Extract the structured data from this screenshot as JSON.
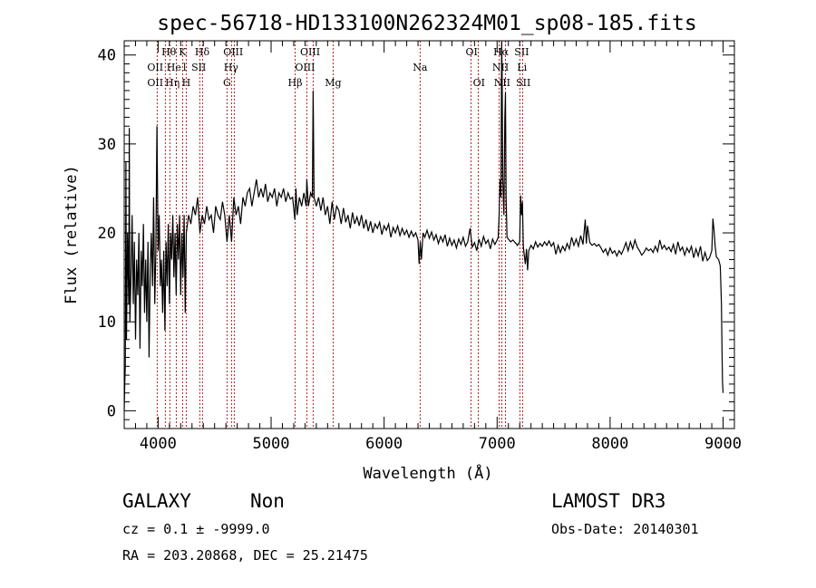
{
  "chart_data": {
    "type": "line",
    "title": "spec-56718-HD133100N262324M01_sp08-185.fits",
    "xlabel": "Wavelength (Å)",
    "ylabel": "Flux (relative)",
    "xlim": [
      3700,
      9100
    ],
    "ylim": [
      -2,
      41.6
    ],
    "xticks": [
      4000,
      5000,
      6000,
      7000,
      8000,
      9000
    ],
    "yticks": [
      0,
      10,
      20,
      30,
      40
    ],
    "grid": false,
    "line_color": "#000000",
    "marker_color": "#b22222",
    "spectrum": [
      [
        3700,
        0
      ],
      [
        3705,
        3
      ],
      [
        3710,
        5
      ],
      [
        3715,
        28
      ],
      [
        3720,
        8
      ],
      [
        3730,
        20
      ],
      [
        3740,
        12
      ],
      [
        3745,
        31.8
      ],
      [
        3750,
        10
      ],
      [
        3760,
        15
      ],
      [
        3770,
        22
      ],
      [
        3780,
        12
      ],
      [
        3790,
        19
      ],
      [
        3800,
        8
      ],
      [
        3810,
        17
      ],
      [
        3820,
        13
      ],
      [
        3830,
        20
      ],
      [
        3840,
        7
      ],
      [
        3850,
        18
      ],
      [
        3860,
        14
      ],
      [
        3870,
        21
      ],
      [
        3880,
        11
      ],
      [
        3890,
        17
      ],
      [
        3900,
        10
      ],
      [
        3910,
        19
      ],
      [
        3920,
        6
      ],
      [
        3930,
        16
      ],
      [
        3940,
        20
      ],
      [
        3950,
        14
      ],
      [
        3960,
        24
      ],
      [
        3970,
        12
      ],
      [
        3980,
        18
      ],
      [
        3990,
        32
      ],
      [
        4000,
        18
      ],
      [
        4010,
        22
      ],
      [
        4020,
        14
      ],
      [
        4030,
        17
      ],
      [
        4040,
        11
      ],
      [
        4050,
        18
      ],
      [
        4060,
        9
      ],
      [
        4070,
        19
      ],
      [
        4080,
        14
      ],
      [
        4090,
        21
      ],
      [
        4100,
        12
      ],
      [
        4110,
        20
      ],
      [
        4120,
        17
      ],
      [
        4130,
        22
      ],
      [
        4140,
        15
      ],
      [
        4150,
        20
      ],
      [
        4160,
        13
      ],
      [
        4170,
        21
      ],
      [
        4180,
        17
      ],
      [
        4190,
        22
      ],
      [
        4200,
        13
      ],
      [
        4210,
        20
      ],
      [
        4220,
        15
      ],
      [
        4230,
        22
      ],
      [
        4240,
        11
      ],
      [
        4250,
        20
      ],
      [
        4270,
        22
      ],
      [
        4290,
        21
      ],
      [
        4310,
        23
      ],
      [
        4330,
        22
      ],
      [
        4350,
        24
      ],
      [
        4370,
        20
      ],
      [
        4390,
        22
      ],
      [
        4410,
        21
      ],
      [
        4430,
        23
      ],
      [
        4450,
        21.5
      ],
      [
        4470,
        22
      ],
      [
        4490,
        20
      ],
      [
        4510,
        23
      ],
      [
        4530,
        22
      ],
      [
        4550,
        21.5
      ],
      [
        4570,
        23.5
      ],
      [
        4590,
        22
      ],
      [
        4610,
        19
      ],
      [
        4630,
        22
      ],
      [
        4650,
        19
      ],
      [
        4670,
        24
      ],
      [
        4690,
        22
      ],
      [
        4710,
        23
      ],
      [
        4730,
        21
      ],
      [
        4750,
        24
      ],
      [
        4770,
        23
      ],
      [
        4790,
        24.5
      ],
      [
        4810,
        25
      ],
      [
        4830,
        23
      ],
      [
        4850,
        24.5
      ],
      [
        4870,
        26
      ],
      [
        4890,
        24
      ],
      [
        4910,
        25
      ],
      [
        4930,
        24
      ],
      [
        4950,
        25.5
      ],
      [
        4970,
        23.5
      ],
      [
        4990,
        24.5
      ],
      [
        5010,
        24
      ],
      [
        5030,
        25
      ],
      [
        5050,
        23
      ],
      [
        5070,
        24.5
      ],
      [
        5090,
        24
      ],
      [
        5110,
        25
      ],
      [
        5130,
        23.5
      ],
      [
        5150,
        24.5
      ],
      [
        5170,
        23.8
      ],
      [
        5190,
        24
      ],
      [
        5210,
        21.5
      ],
      [
        5220,
        25
      ],
      [
        5230,
        22
      ],
      [
        5250,
        24
      ],
      [
        5270,
        23
      ],
      [
        5290,
        24.5
      ],
      [
        5310,
        23
      ],
      [
        5316,
        26
      ],
      [
        5330,
        23
      ],
      [
        5350,
        24.5
      ],
      [
        5365,
        24
      ],
      [
        5372,
        36
      ],
      [
        5380,
        24
      ],
      [
        5400,
        23
      ],
      [
        5420,
        24
      ],
      [
        5440,
        22.5
      ],
      [
        5460,
        24
      ],
      [
        5480,
        22
      ],
      [
        5500,
        23
      ],
      [
        5520,
        21
      ],
      [
        5540,
        23.5
      ],
      [
        5560,
        21.5
      ],
      [
        5580,
        23
      ],
      [
        5600,
        22.5
      ],
      [
        5620,
        21
      ],
      [
        5640,
        22.8
      ],
      [
        5660,
        21.2
      ],
      [
        5680,
        22
      ],
      [
        5700,
        20.5
      ],
      [
        5720,
        22.3
      ],
      [
        5740,
        21
      ],
      [
        5760,
        21.8
      ],
      [
        5780,
        20.8
      ],
      [
        5800,
        22
      ],
      [
        5820,
        20.5
      ],
      [
        5840,
        21.5
      ],
      [
        5860,
        20.2
      ],
      [
        5880,
        21.3
      ],
      [
        5900,
        20
      ],
      [
        5920,
        21
      ],
      [
        5940,
        20.5
      ],
      [
        5960,
        21.2
      ],
      [
        5980,
        19.8
      ],
      [
        6000,
        20.8
      ],
      [
        6020,
        20.3
      ],
      [
        6040,
        21
      ],
      [
        6060,
        19.5
      ],
      [
        6080,
        20.6
      ],
      [
        6100,
        20
      ],
      [
        6120,
        20.8
      ],
      [
        6140,
        19.7
      ],
      [
        6160,
        20.5
      ],
      [
        6180,
        19.8
      ],
      [
        6200,
        20.3
      ],
      [
        6220,
        19.5
      ],
      [
        6240,
        20.2
      ],
      [
        6260,
        19.6
      ],
      [
        6280,
        20
      ],
      [
        6300,
        19.2
      ],
      [
        6310,
        16.5
      ],
      [
        6320,
        19
      ],
      [
        6330,
        17
      ],
      [
        6345,
        20
      ],
      [
        6360,
        19.5
      ],
      [
        6380,
        20.3
      ],
      [
        6400,
        19.4
      ],
      [
        6420,
        20.1
      ],
      [
        6440,
        19.2
      ],
      [
        6460,
        19.8
      ],
      [
        6480,
        18.8
      ],
      [
        6500,
        19.6
      ],
      [
        6520,
        19
      ],
      [
        6540,
        19.8
      ],
      [
        6560,
        18.5
      ],
      [
        6580,
        19.4
      ],
      [
        6600,
        18.6
      ],
      [
        6620,
        19.2
      ],
      [
        6640,
        18.3
      ],
      [
        6660,
        19.3
      ],
      [
        6680,
        18.7
      ],
      [
        6700,
        19.5
      ],
      [
        6720,
        18.5
      ],
      [
        6740,
        19
      ],
      [
        6760,
        20.5
      ],
      [
        6780,
        18.4
      ],
      [
        6800,
        18.9
      ],
      [
        6820,
        18
      ],
      [
        6840,
        19.3
      ],
      [
        6860,
        18.5
      ],
      [
        6880,
        19.6
      ],
      [
        6900,
        18.8
      ],
      [
        6920,
        19.2
      ],
      [
        6940,
        18.2
      ],
      [
        6960,
        19.3
      ],
      [
        6980,
        18.7
      ],
      [
        7000,
        19.2
      ],
      [
        7010,
        19.5
      ],
      [
        7018,
        22
      ],
      [
        7026,
        26
      ],
      [
        7034,
        24
      ],
      [
        7040,
        41.5
      ],
      [
        7044,
        38
      ],
      [
        7050,
        26
      ],
      [
        7060,
        22
      ],
      [
        7068,
        33
      ],
      [
        7074,
        35.8
      ],
      [
        7080,
        24
      ],
      [
        7088,
        19.5
      ],
      [
        7100,
        19.3
      ],
      [
        7120,
        19
      ],
      [
        7140,
        19.2
      ],
      [
        7160,
        18.9
      ],
      [
        7180,
        18.6
      ],
      [
        7200,
        19
      ],
      [
        7208,
        24.2
      ],
      [
        7216,
        22
      ],
      [
        7224,
        23.5
      ],
      [
        7232,
        18.5
      ],
      [
        7240,
        17.5
      ],
      [
        7250,
        16.5
      ],
      [
        7260,
        18.2
      ],
      [
        7270,
        15.8
      ],
      [
        7280,
        18
      ],
      [
        7300,
        18.6
      ],
      [
        7320,
        18.2
      ],
      [
        7340,
        19
      ],
      [
        7360,
        18.4
      ],
      [
        7380,
        18.8
      ],
      [
        7400,
        18.5
      ],
      [
        7420,
        19
      ],
      [
        7440,
        18.6
      ],
      [
        7460,
        19.1
      ],
      [
        7480,
        18.5
      ],
      [
        7500,
        18.9
      ],
      [
        7520,
        17.6
      ],
      [
        7540,
        18.6
      ],
      [
        7560,
        17.8
      ],
      [
        7580,
        18.5
      ],
      [
        7600,
        18
      ],
      [
        7620,
        18.8
      ],
      [
        7640,
        18.2
      ],
      [
        7660,
        19.5
      ],
      [
        7680,
        18.6
      ],
      [
        7700,
        19.3
      ],
      [
        7720,
        18.5
      ],
      [
        7740,
        19.7
      ],
      [
        7760,
        18.7
      ],
      [
        7780,
        21.5
      ],
      [
        7790,
        18.8
      ],
      [
        7800,
        20.8
      ],
      [
        7820,
        18.9
      ],
      [
        7840,
        18.6
      ],
      [
        7860,
        18.8
      ],
      [
        7880,
        18.5
      ],
      [
        7900,
        18.7
      ],
      [
        7920,
        18.3
      ],
      [
        7940,
        17.8
      ],
      [
        7960,
        18.2
      ],
      [
        7980,
        17.5
      ],
      [
        8000,
        18.3
      ],
      [
        8020,
        17.7
      ],
      [
        8040,
        18
      ],
      [
        8060,
        17.4
      ],
      [
        8080,
        18
      ],
      [
        8100,
        17.6
      ],
      [
        8120,
        18.2
      ],
      [
        8140,
        18.9
      ],
      [
        8160,
        18
      ],
      [
        8180,
        19
      ],
      [
        8200,
        18.2
      ],
      [
        8220,
        19.2
      ],
      [
        8240,
        18.4
      ],
      [
        8260,
        18
      ],
      [
        8280,
        17.5
      ],
      [
        8300,
        17.8
      ],
      [
        8320,
        18.3
      ],
      [
        8340,
        18
      ],
      [
        8360,
        18.2
      ],
      [
        8380,
        17.8
      ],
      [
        8400,
        18.5
      ],
      [
        8420,
        17.9
      ],
      [
        8440,
        19.2
      ],
      [
        8460,
        18.2
      ],
      [
        8480,
        18.6
      ],
      [
        8500,
        18.1
      ],
      [
        8520,
        18.4
      ],
      [
        8540,
        17.9
      ],
      [
        8560,
        18.7
      ],
      [
        8580,
        17.6
      ],
      [
        8600,
        19
      ],
      [
        8620,
        18
      ],
      [
        8640,
        18.4
      ],
      [
        8660,
        17.5
      ],
      [
        8680,
        18.3
      ],
      [
        8700,
        17.8
      ],
      [
        8720,
        18.5
      ],
      [
        8740,
        17.2
      ],
      [
        8760,
        18.2
      ],
      [
        8780,
        17.4
      ],
      [
        8800,
        18.5
      ],
      [
        8820,
        16.8
      ],
      [
        8840,
        17.8
      ],
      [
        8860,
        16.9
      ],
      [
        8880,
        17.2
      ],
      [
        8900,
        18
      ],
      [
        8910,
        21.6
      ],
      [
        8920,
        20.2
      ],
      [
        8930,
        18.5
      ],
      [
        8940,
        17.3
      ],
      [
        8960,
        17
      ],
      [
        8975,
        16.3
      ],
      [
        8985,
        12
      ],
      [
        8990,
        7
      ],
      [
        8995,
        3.2
      ],
      [
        9000,
        2
      ]
    ],
    "line_markers": [
      3992,
      4064,
      4104,
      4161,
      4217,
      4249,
      4369,
      4393,
      4610,
      4650,
      4674,
      5212,
      5316,
      5372,
      5549,
      6319,
      6769,
      6833,
      7018,
      7042,
      7074,
      7202,
      7226
    ],
    "line_labels": [
      {
        "text": "Hθ",
        "wave": 4095,
        "row": 0
      },
      {
        "text": "K",
        "wave": 4217,
        "row": 0
      },
      {
        "text": "Hδ",
        "wave": 4390,
        "row": 0
      },
      {
        "text": "OIII",
        "wave": 4665,
        "row": 0
      },
      {
        "text": "OIII",
        "wave": 5345,
        "row": 0
      },
      {
        "text": "OI",
        "wave": 6775,
        "row": 0
      },
      {
        "text": "Hα",
        "wave": 7035,
        "row": 0
      },
      {
        "text": "SII",
        "wave": 7218,
        "row": 0
      },
      {
        "text": "OII",
        "wave": 3975,
        "row": 1
      },
      {
        "text": "He",
        "wave": 4140,
        "row": 1
      },
      {
        "text": "l",
        "wave": 4205,
        "row": 1
      },
      {
        "text": "SII",
        "wave": 4360,
        "row": 1
      },
      {
        "text": "Hγ",
        "wave": 4645,
        "row": 1
      },
      {
        "text": "OIII",
        "wave": 5300,
        "row": 1
      },
      {
        "text": "Na",
        "wave": 6319,
        "row": 1
      },
      {
        "text": "NII",
        "wave": 7030,
        "row": 1
      },
      {
        "text": "Li",
        "wave": 7220,
        "row": 1
      },
      {
        "text": "OII",
        "wave": 3975,
        "row": 2
      },
      {
        "text": "Hη",
        "wave": 4110,
        "row": 2
      },
      {
        "text": "H",
        "wave": 4249,
        "row": 2
      },
      {
        "text": "G",
        "wave": 4610,
        "row": 2
      },
      {
        "text": "Hβ",
        "wave": 5212,
        "row": 2
      },
      {
        "text": "Mg",
        "wave": 5549,
        "row": 2
      },
      {
        "text": "OI",
        "wave": 6840,
        "row": 2
      },
      {
        "text": "NII",
        "wave": 7045,
        "row": 2
      },
      {
        "text": "SII",
        "wave": 7232,
        "row": 2
      }
    ]
  },
  "info": {
    "class": "GALAXY",
    "subclass": "Non",
    "cz": "cz = 0.1 ± -9999.0",
    "radec": "RA = 203.20868, DEC =  25.21475",
    "survey": "LAMOST DR3",
    "obs_date": "Obs-Date: 20140301"
  }
}
